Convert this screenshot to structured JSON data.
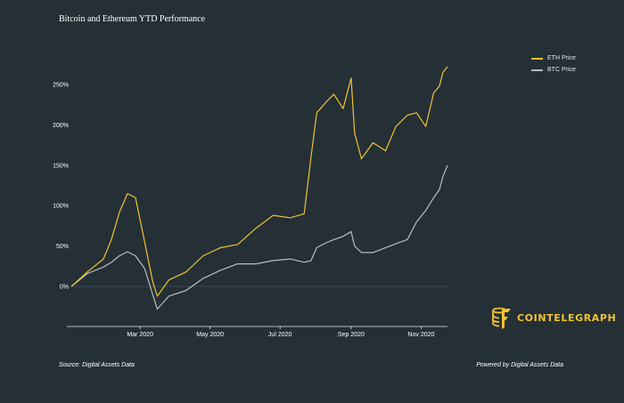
{
  "chart_data": {
    "type": "line",
    "title": "Bitcoin and Ethereum YTD Performance",
    "xlabel": "",
    "ylabel": "",
    "x_tick_labels": [
      "Mar 2020",
      "May 2020",
      "Jul 2020",
      "Sep 2020",
      "Nov 2020"
    ],
    "y_tick_labels": [
      "0%",
      "50%",
      "100%",
      "150%",
      "200%",
      "250%"
    ],
    "ylim": [
      -50,
      270
    ],
    "legend_position": "top-right",
    "x": [
      "2020-01-01",
      "2020-01-15",
      "2020-01-29",
      "2020-02-05",
      "2020-02-12",
      "2020-02-19",
      "2020-02-26",
      "2020-03-05",
      "2020-03-12",
      "2020-03-16",
      "2020-03-26",
      "2020-04-10",
      "2020-04-25",
      "2020-05-10",
      "2020-05-25",
      "2020-06-10",
      "2020-06-25",
      "2020-07-10",
      "2020-07-22",
      "2020-07-28",
      "2020-08-02",
      "2020-08-10",
      "2020-08-17",
      "2020-08-25",
      "2020-09-01",
      "2020-09-04",
      "2020-09-10",
      "2020-09-20",
      "2020-10-01",
      "2020-10-10",
      "2020-10-20",
      "2020-10-28",
      "2020-11-05",
      "2020-11-12",
      "2020-11-17",
      "2020-11-20",
      "2020-11-24"
    ],
    "series": [
      {
        "name": "ETH Price",
        "color": "#f2c230",
        "values": [
          0,
          18,
          34,
          58,
          92,
          115,
          110,
          55,
          6,
          -12,
          8,
          18,
          38,
          48,
          52,
          72,
          88,
          85,
          90,
          160,
          215,
          228,
          238,
          220,
          258,
          190,
          158,
          178,
          168,
          198,
          212,
          215,
          198,
          240,
          248,
          265,
          272
        ]
      },
      {
        "name": "BTC Price",
        "color": "#b8bcbf",
        "values": [
          0,
          16,
          24,
          30,
          38,
          43,
          38,
          22,
          -10,
          -28,
          -12,
          -5,
          10,
          20,
          28,
          28,
          32,
          34,
          30,
          32,
          48,
          54,
          58,
          62,
          68,
          50,
          42,
          42,
          48,
          53,
          58,
          80,
          94,
          110,
          120,
          136,
          150
        ]
      }
    ]
  },
  "footer": {
    "source": "Source: Digital Assets Data",
    "powered": "Powered by Digital Assets Data"
  },
  "logo": {
    "text": "COINTELEGRAPH",
    "color": "#f2c230"
  }
}
